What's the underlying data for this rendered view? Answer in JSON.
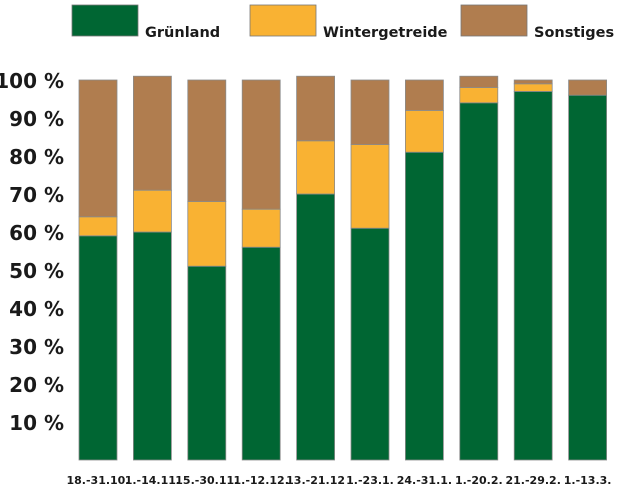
{
  "chart_data": {
    "type": "bar",
    "stacked": true,
    "categories": [
      "18.-31.10.",
      "1.-14.11.",
      "15.-30.11.",
      "1.-12.12.",
      "13.-21.12",
      "1.-23.1.",
      "24.-31.1.",
      "1.-20.2.",
      "21.-29.2.",
      "1.-13.3."
    ],
    "series": [
      {
        "name": "Grünland",
        "color": "#006633",
        "values": [
          59,
          60,
          51,
          56,
          70,
          61,
          81,
          94,
          97,
          96
        ]
      },
      {
        "name": "Wintergetreide",
        "color": "#f9b233",
        "values": [
          5,
          11,
          17,
          10,
          14,
          22,
          11,
          4,
          2,
          0
        ]
      },
      {
        "name": "Sonstiges",
        "color": "#b07d4f",
        "values": [
          36,
          30,
          32,
          34,
          17,
          17,
          8,
          3,
          1,
          4
        ]
      }
    ],
    "yticks": [
      "10 %",
      "20 %",
      "30 %",
      "40 %",
      "50 %",
      "60 %",
      "70 %",
      "80 %",
      "90 %",
      "100 %"
    ],
    "ylim": [
      0,
      100
    ],
    "legend_position": "top",
    "grid": false
  }
}
